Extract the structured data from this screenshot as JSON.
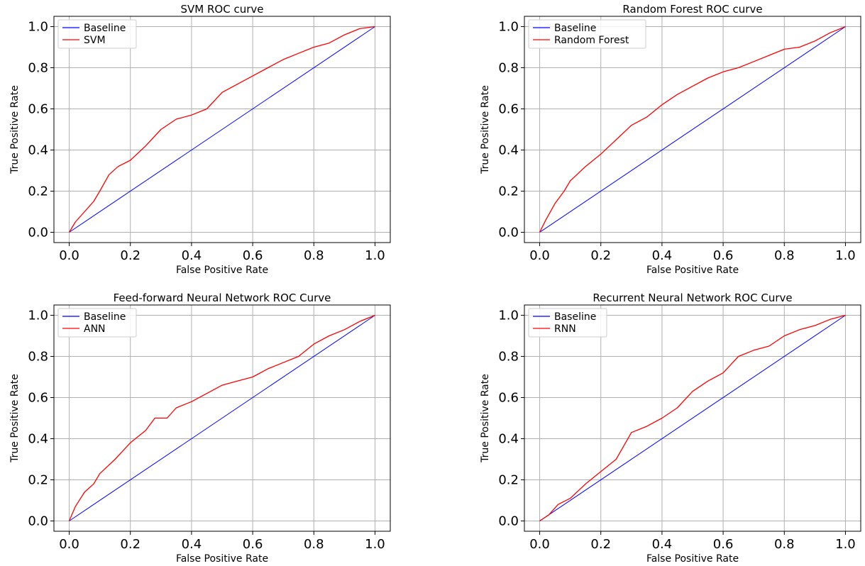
{
  "colors": {
    "baseline": "#0000ff",
    "model": "#ff0000",
    "grid": "#b0b0b0",
    "frame": "#000000"
  },
  "chart_data": [
    {
      "type": "line",
      "title": "SVM ROC curve",
      "xlabel": "False Positive Rate",
      "ylabel": "True Positive Rate",
      "xlim": [
        0,
        1
      ],
      "ylim": [
        0,
        1
      ],
      "xticks": [
        "0.0",
        "0.2",
        "0.4",
        "0.6",
        "0.8",
        "1.0"
      ],
      "yticks": [
        "0.0",
        "0.2",
        "0.4",
        "0.6",
        "0.8",
        "1.0"
      ],
      "grid": true,
      "legend": "top-left",
      "series": [
        {
          "name": "Baseline",
          "color": "#0000ff",
          "x": [
            0,
            1
          ],
          "y": [
            0,
            1
          ]
        },
        {
          "name": "SVM",
          "color": "#ff0000",
          "x": [
            0,
            0.02,
            0.05,
            0.08,
            0.1,
            0.13,
            0.16,
            0.2,
            0.25,
            0.3,
            0.35,
            0.4,
            0.45,
            0.5,
            0.55,
            0.6,
            0.65,
            0.7,
            0.75,
            0.8,
            0.85,
            0.9,
            0.95,
            1.0
          ],
          "y": [
            0,
            0.05,
            0.1,
            0.15,
            0.2,
            0.28,
            0.32,
            0.35,
            0.42,
            0.5,
            0.55,
            0.57,
            0.6,
            0.68,
            0.72,
            0.76,
            0.8,
            0.84,
            0.87,
            0.9,
            0.92,
            0.96,
            0.99,
            1.0
          ]
        }
      ]
    },
    {
      "type": "line",
      "title": "Random Forest ROC curve",
      "xlabel": "False Positive Rate",
      "ylabel": "True Positive Rate",
      "xlim": [
        0,
        1
      ],
      "ylim": [
        0,
        1
      ],
      "xticks": [
        "0.0",
        "0.2",
        "0.4",
        "0.6",
        "0.8",
        "1.0"
      ],
      "yticks": [
        "0.0",
        "0.2",
        "0.4",
        "0.6",
        "0.8",
        "1.0"
      ],
      "grid": true,
      "legend": "top-left",
      "series": [
        {
          "name": "Baseline",
          "color": "#0000ff",
          "x": [
            0,
            1
          ],
          "y": [
            0,
            1
          ]
        },
        {
          "name": "Random Forest",
          "color": "#ff0000",
          "x": [
            0,
            0.02,
            0.05,
            0.08,
            0.1,
            0.15,
            0.2,
            0.25,
            0.3,
            0.35,
            0.4,
            0.45,
            0.5,
            0.55,
            0.6,
            0.65,
            0.7,
            0.75,
            0.8,
            0.85,
            0.9,
            0.95,
            1.0
          ],
          "y": [
            0,
            0.06,
            0.14,
            0.2,
            0.25,
            0.32,
            0.38,
            0.45,
            0.52,
            0.56,
            0.62,
            0.67,
            0.71,
            0.75,
            0.78,
            0.8,
            0.83,
            0.86,
            0.89,
            0.9,
            0.93,
            0.97,
            1.0
          ]
        }
      ]
    },
    {
      "type": "line",
      "title": "Feed-forward Neural Network ROC Curve",
      "xlabel": "False Positive Rate",
      "ylabel": "True Positive Rate",
      "xlim": [
        0,
        1
      ],
      "ylim": [
        0,
        1
      ],
      "xticks": [
        "0.0",
        "0.2",
        "0.4",
        "0.6",
        "0.8",
        "1.0"
      ],
      "yticks": [
        "0.0",
        "0.2",
        "0.4",
        "0.6",
        "0.8",
        "1.0"
      ],
      "grid": true,
      "legend": "top-left",
      "series": [
        {
          "name": "Baseline",
          "color": "#0000ff",
          "x": [
            0,
            1
          ],
          "y": [
            0,
            1
          ]
        },
        {
          "name": "ANN",
          "color": "#ff0000",
          "x": [
            0,
            0.02,
            0.05,
            0.08,
            0.1,
            0.15,
            0.2,
            0.25,
            0.28,
            0.32,
            0.35,
            0.4,
            0.45,
            0.5,
            0.55,
            0.6,
            0.65,
            0.7,
            0.75,
            0.8,
            0.85,
            0.9,
            0.95,
            1.0
          ],
          "y": [
            0,
            0.07,
            0.14,
            0.18,
            0.23,
            0.3,
            0.38,
            0.44,
            0.5,
            0.5,
            0.55,
            0.58,
            0.62,
            0.66,
            0.68,
            0.7,
            0.74,
            0.77,
            0.8,
            0.86,
            0.9,
            0.93,
            0.97,
            1.0
          ]
        }
      ]
    },
    {
      "type": "line",
      "title": "Recurrent Neural Network ROC Curve",
      "xlabel": "False Positive Rate",
      "ylabel": "True Positive Rate",
      "xlim": [
        0,
        1
      ],
      "ylim": [
        0,
        1
      ],
      "xticks": [
        "0.0",
        "0.2",
        "0.4",
        "0.6",
        "0.8",
        "1.0"
      ],
      "yticks": [
        "0.0",
        "0.2",
        "0.4",
        "0.6",
        "0.8",
        "1.0"
      ],
      "grid": true,
      "legend": "top-left",
      "series": [
        {
          "name": "Baseline",
          "color": "#0000ff",
          "x": [
            0,
            1
          ],
          "y": [
            0,
            1
          ]
        },
        {
          "name": "RNN",
          "color": "#ff0000",
          "x": [
            0,
            0.03,
            0.06,
            0.1,
            0.15,
            0.2,
            0.25,
            0.3,
            0.35,
            0.4,
            0.45,
            0.5,
            0.55,
            0.6,
            0.65,
            0.7,
            0.75,
            0.8,
            0.85,
            0.9,
            0.95,
            1.0
          ],
          "y": [
            0,
            0.03,
            0.08,
            0.11,
            0.18,
            0.24,
            0.3,
            0.43,
            0.46,
            0.5,
            0.55,
            0.63,
            0.68,
            0.72,
            0.8,
            0.83,
            0.85,
            0.9,
            0.93,
            0.95,
            0.98,
            1.0
          ]
        }
      ]
    }
  ]
}
